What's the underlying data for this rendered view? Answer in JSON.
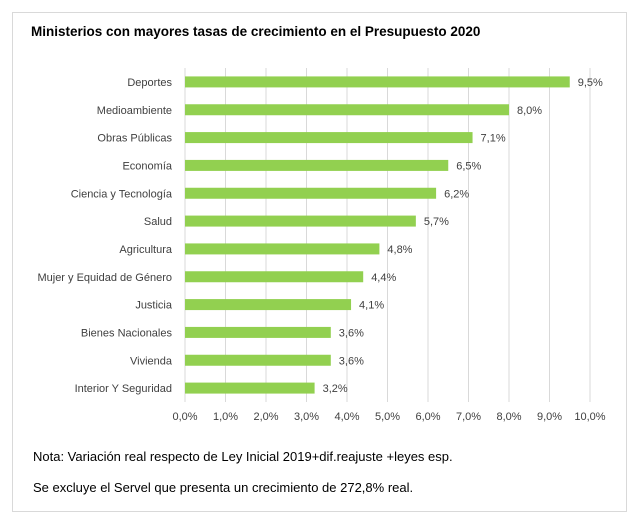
{
  "chart_data": {
    "type": "bar",
    "orientation": "horizontal",
    "title": "Ministerios con mayores tasas de crecimiento en el Presupuesto 2020",
    "categories": [
      "Deportes",
      "Medioambiente",
      "Obras Públicas",
      "Economía",
      "Ciencia y Tecnología",
      "Salud",
      "Agricultura",
      "Mujer y Equidad de Género",
      "Justicia",
      "Bienes Nacionales",
      "Vivienda",
      "Interior Y Seguridad"
    ],
    "values": [
      9.5,
      8.0,
      7.1,
      6.5,
      6.2,
      5.7,
      4.8,
      4.4,
      4.1,
      3.6,
      3.6,
      3.2
    ],
    "value_labels": [
      "9,5%",
      "8,0%",
      "7,1%",
      "6,5%",
      "6,2%",
      "5,7%",
      "4,8%",
      "4,4%",
      "4,1%",
      "3,6%",
      "3,6%",
      "3,2%"
    ],
    "x_ticks": [
      "0,0%",
      "1,0%",
      "2,0%",
      "3,0%",
      "4,0%",
      "5,0%",
      "6,0%",
      "7,0%",
      "8,0%",
      "9,0%",
      "10,0%"
    ],
    "xlim": [
      0,
      10
    ],
    "xlabel": "",
    "ylabel": "",
    "grid": "vertical",
    "bar_color": "#92d050",
    "grid_color": "#d9d9d9"
  },
  "notes": {
    "line1": "Nota: Variación real respecto de Ley Inicial 2019+dif.reajuste +leyes esp.",
    "line2": "Se excluye el Servel que presenta un crecimiento de 272,8% real."
  }
}
